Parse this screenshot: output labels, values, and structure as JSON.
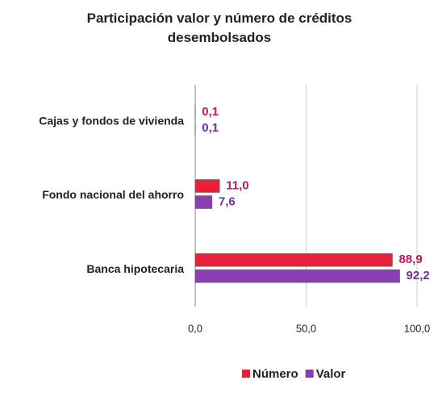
{
  "chart_data": {
    "type": "hbar",
    "title": "Participación valor y número de créditos desembolsados",
    "categories": [
      "Cajas y fondos de vivienda",
      "Fondo nacional del ahorro",
      "Banca hipotecaria"
    ],
    "series": [
      {
        "name": "Número",
        "color": "#e8203a",
        "label_color": "#c0185a",
        "values": [
          0.1,
          11.0,
          88.9
        ],
        "value_labels": [
          "0,1",
          "11,0",
          "88,9"
        ]
      },
      {
        "name": "Valor",
        "color": "#8a3fb0",
        "label_color": "#7030a0",
        "values": [
          0.1,
          7.6,
          92.2
        ],
        "value_labels": [
          "0,1",
          "7,6",
          "92,2"
        ]
      }
    ],
    "xlim": [
      0,
      100
    ],
    "xticks": [
      {
        "value": 0,
        "label": "0,0"
      },
      {
        "value": 50,
        "label": "50,0"
      },
      {
        "value": 100,
        "label": "100,0"
      }
    ],
    "grid": true,
    "legend": "bottom"
  }
}
